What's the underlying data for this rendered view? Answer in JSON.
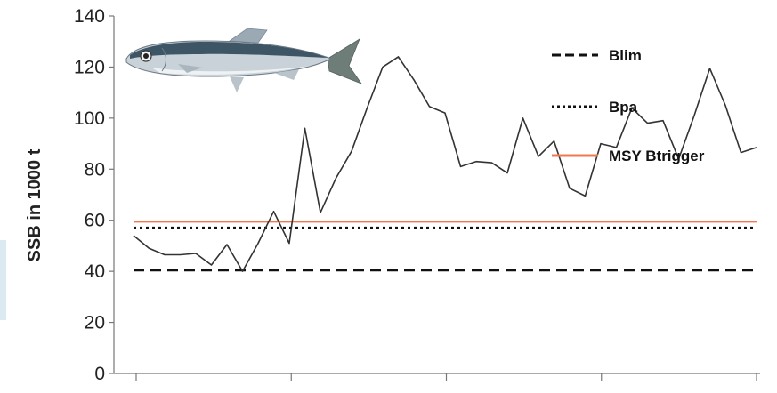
{
  "chart_data": {
    "type": "line",
    "ylabel": "SSB in 1000 t",
    "xlabel": "",
    "title": "",
    "ylim": [
      0,
      140
    ],
    "yticks": [
      0,
      20,
      40,
      60,
      80,
      100,
      120,
      140
    ],
    "x_tick_count": 5,
    "series": [
      {
        "name": "",
        "color": "#333333",
        "values": [
          54,
          49,
          46.5,
          46.5,
          47,
          42.5,
          50.5,
          40,
          51,
          63.5,
          51,
          96,
          63,
          76.5,
          87,
          104,
          120,
          124,
          115,
          104.5,
          102,
          81,
          83,
          82.5,
          78.5,
          100,
          85,
          91,
          72.5,
          69.5,
          90,
          88.5,
          104,
          98,
          99,
          84,
          101,
          119.5,
          105,
          86.5,
          88.5
        ]
      }
    ],
    "reference_lines": [
      {
        "name": "Blim",
        "value": 40.5,
        "style": "dashed",
        "color": "#111111"
      },
      {
        "name": "Bpa",
        "value": 57,
        "style": "dotted",
        "color": "#111111"
      },
      {
        "name": "MSY Btrigger",
        "value": 59.5,
        "style": "solid",
        "color": "#f07850"
      }
    ],
    "legend": {
      "placement": "top-right",
      "entries": [
        "Blim",
        "Bpa",
        "MSY Btrigger"
      ]
    }
  },
  "illustration": {
    "icon": "herring-fish-icon"
  }
}
